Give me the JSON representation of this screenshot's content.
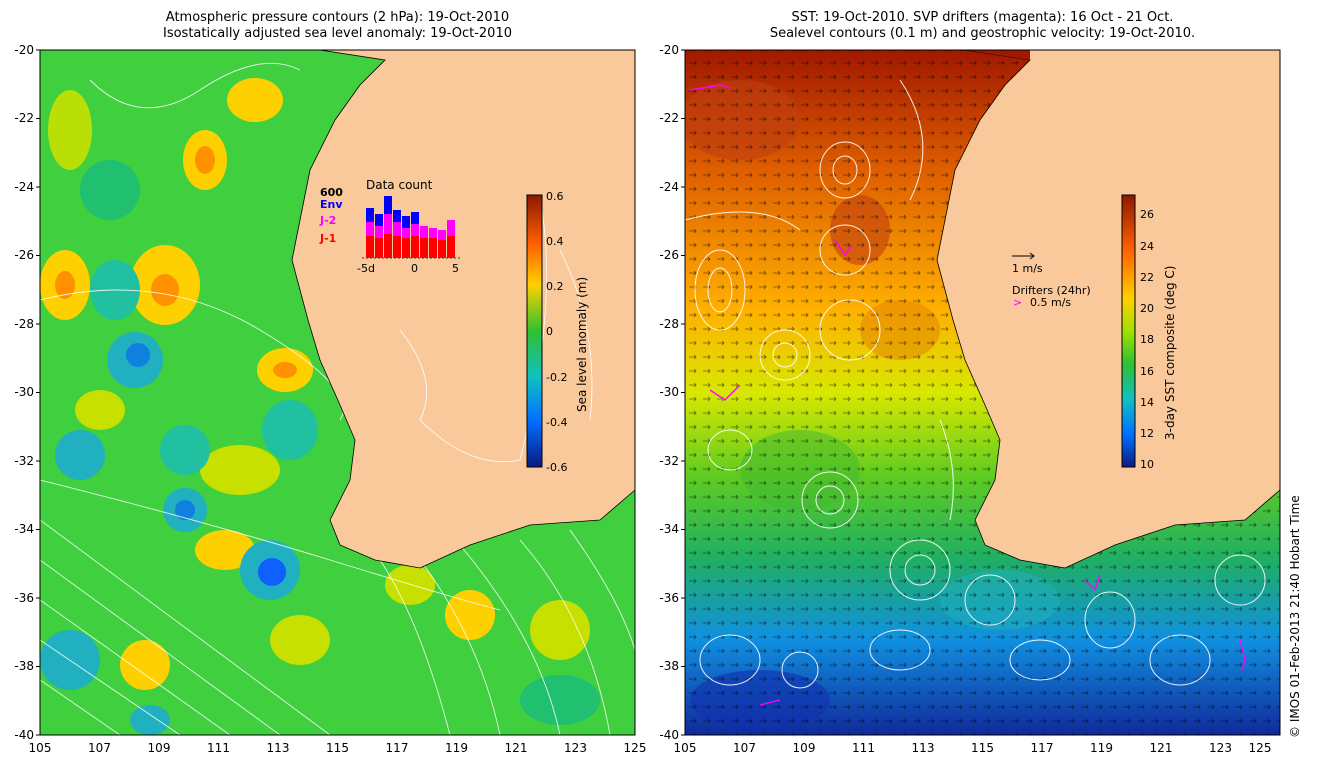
{
  "left_panel": {
    "title_line1": "Atmospheric pressure contours (2 hPa): 19-Oct-2010",
    "title_line2": "Isostatically adjusted sea level anomaly: 19-Oct-2010",
    "colorbar_label": "Sea level anomaly (m)",
    "colorbar_ticks": [
      "0.6",
      "0.4",
      "0.2",
      "0",
      "-0.2",
      "-0.4",
      "-0.6"
    ],
    "inset": {
      "title": "Data count",
      "max_label": "600",
      "legend": [
        "Env",
        "J-2",
        "J-1"
      ],
      "x_ticks": [
        "-5d",
        "0",
        "5"
      ]
    }
  },
  "right_panel": {
    "title_line1": "SST: 19-Oct-2010. SVP drifters (magenta): 16 Oct - 21 Oct.",
    "title_line2": "Sealevel contours (0.1 m) and geostrophic velocity: 19-Oct-2010.",
    "colorbar_label": "3-day SST composite (deg C)",
    "colorbar_ticks": [
      "26",
      "24",
      "22",
      "20",
      "18",
      "16",
      "14",
      "12",
      "10"
    ],
    "velocity_scale_label": "1 m/s",
    "drifters_label": "Drifters (24hr)",
    "drifters_scale_label": "0.5 m/s",
    "drifters_marker": ">"
  },
  "axes": {
    "y_ticks": [
      "-20",
      "-22",
      "-24",
      "-26",
      "-28",
      "-30",
      "-32",
      "-34",
      "-36",
      "-38",
      "-40"
    ],
    "x_ticks": [
      "105",
      "107",
      "109",
      "111",
      "113",
      "115",
      "117",
      "119",
      "121",
      "123",
      "125"
    ]
  },
  "credit": "© IMOS 01-Feb-2013 21:40 Hobart Time",
  "colors": {
    "land": "#f9c99b",
    "sla_positive": "#ffc000",
    "sla_neutral": "#33cc33",
    "sla_negative": "#0070ff",
    "sst_warm": "#a01800",
    "sst_cool": "#1040c0",
    "drifters": "#ff00ff",
    "inset_env": "#0000ff",
    "inset_j2": "#ff00ff",
    "inset_j1": "#ff0000"
  }
}
